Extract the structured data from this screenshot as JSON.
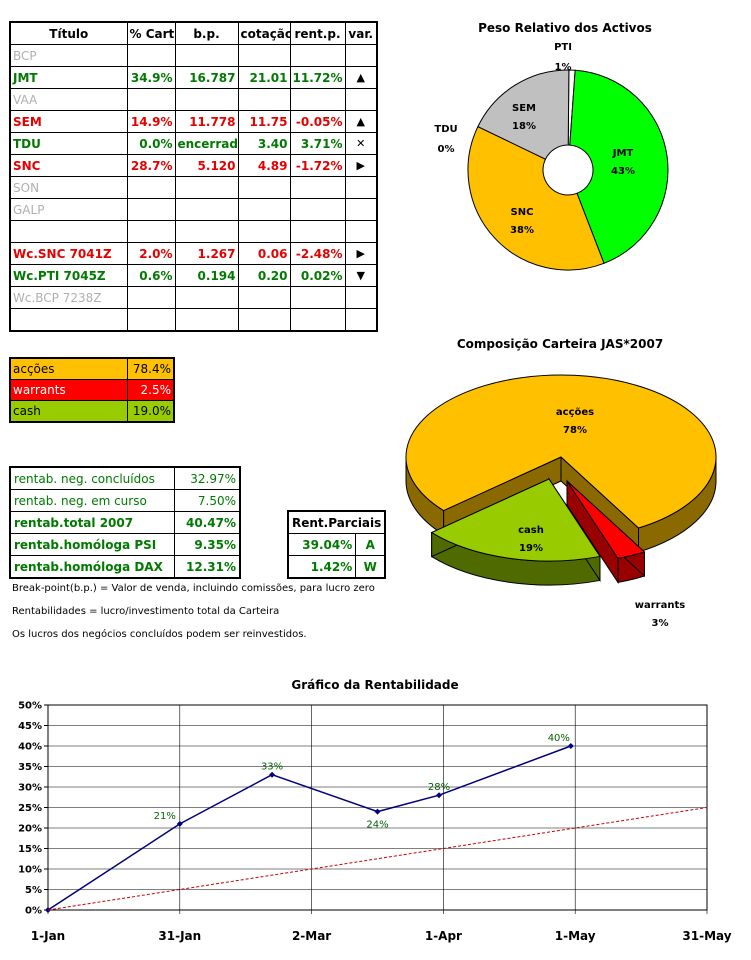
{
  "holdings": {
    "headers": [
      "Título",
      "% Cart",
      "b.p.",
      "cotação",
      "rent.p.",
      "var."
    ],
    "rows": [
      {
        "name": "BCP",
        "cart": "",
        "bp": "",
        "cot": "",
        "rent": "",
        "var": "",
        "color": "grey"
      },
      {
        "name": "JMT",
        "cart": "34.9%",
        "bp": "16.787",
        "cot": "21.01",
        "rent": "11.72%",
        "var": "▲",
        "color": "green"
      },
      {
        "name": "VAA",
        "cart": "",
        "bp": "",
        "cot": "",
        "rent": "",
        "var": "",
        "color": "grey"
      },
      {
        "name": "SEM",
        "cart": "14.9%",
        "bp": "11.778",
        "cot": "11.75",
        "rent": "-0.05%",
        "var": "▲",
        "color": "red"
      },
      {
        "name": "TDU",
        "cart": "0.0%",
        "bp": "encerrado",
        "cot": "3.40",
        "rent": "3.71%",
        "var": "✕",
        "color": "green"
      },
      {
        "name": "SNC",
        "cart": "28.7%",
        "bp": "5.120",
        "cot": "4.89",
        "rent": "-1.72%",
        "var": "▶",
        "color": "red"
      },
      {
        "name": "SON",
        "cart": "",
        "bp": "",
        "cot": "",
        "rent": "",
        "var": "",
        "color": "grey"
      },
      {
        "name": "GALP",
        "cart": "",
        "bp": "",
        "cot": "",
        "rent": "",
        "var": "",
        "color": "grey"
      },
      {
        "name": "",
        "cart": "",
        "bp": "",
        "cot": "",
        "rent": "",
        "var": "",
        "color": "dark"
      },
      {
        "name": "Wc.SNC 7041Z",
        "cart": "2.0%",
        "bp": "1.267",
        "cot": "0.06",
        "rent": "-2.48%",
        "var": "▶",
        "color": "red"
      },
      {
        "name": "Wc.PTI 7045Z",
        "cart": "0.6%",
        "bp": "0.194",
        "cot": "0.20",
        "rent": "0.02%",
        "var": "▼",
        "color": "green"
      },
      {
        "name": "Wc.BCP 7238Z",
        "cart": "",
        "bp": "",
        "cot": "",
        "rent": "",
        "var": "",
        "color": "grey"
      },
      {
        "name": "",
        "cart": "",
        "bp": "",
        "cot": "",
        "rent": "",
        "var": "",
        "color": "dark"
      }
    ]
  },
  "allocation": [
    {
      "label": "acções",
      "value": "78.4%",
      "color": "#ffc000",
      "text": "#000000"
    },
    {
      "label": "warrants",
      "value": "2.5%",
      "color": "#ff0000",
      "text": "#ffffff"
    },
    {
      "label": "cash",
      "value": "19.0%",
      "color": "#99cc00",
      "text": "#000000"
    }
  ],
  "rentab": [
    {
      "label": "rentab. neg. concluídos",
      "value": "32.97%",
      "bold": false
    },
    {
      "label": "rentab. neg. em curso",
      "value": "7.50%",
      "bold": false
    },
    {
      "label": "rentab.total 2007",
      "value": "40.47%",
      "bold": true
    },
    {
      "label": "rentab.homóloga PSI",
      "value": "9.35%",
      "bold": true
    },
    {
      "label": "rentab.homóloga DAX",
      "value": "12.31%",
      "bold": true
    }
  ],
  "parciais": {
    "header": "Rent.Parciais",
    "rows": [
      {
        "value": "39.04%",
        "letter": "A"
      },
      {
        "value": "1.42%",
        "letter": "W"
      }
    ]
  },
  "notes": [
    "Break-point(b.p.) = Valor de venda, incluindo comissões, para lucro zero",
    "Rentabilidades = lucro/investimento total da Carteira",
    "Os lucros dos negócios concluídos podem ser reinvestidos."
  ],
  "chart_data": [
    {
      "type": "pie",
      "title": "Peso Relativo dos Activos",
      "style": "doughnut",
      "slices": [
        {
          "label": "JMT",
          "value": 43,
          "display": "43%",
          "color": "#00ff00"
        },
        {
          "label": "SNC",
          "value": 38,
          "display": "38%",
          "color": "#ffc000"
        },
        {
          "label": "TDU",
          "value": 0,
          "display": "0%",
          "color": "#000000"
        },
        {
          "label": "SEM",
          "value": 18,
          "display": "18%",
          "color": "#c0c0c0"
        },
        {
          "label": "PTI",
          "value": 1,
          "display": "1%",
          "color": "#ffffff"
        }
      ]
    },
    {
      "type": "pie",
      "title": "Composição Carteira JAS*2007",
      "style": "3d-exploded",
      "slices": [
        {
          "label": "acções",
          "value": 78,
          "display": "78%",
          "color": "#ffc000"
        },
        {
          "label": "warrants",
          "value": 3,
          "display": "3%",
          "color": "#ff0000"
        },
        {
          "label": "cash",
          "value": 19,
          "display": "19%",
          "color": "#99cc00"
        }
      ]
    },
    {
      "type": "line",
      "title": "Gráfico da Rentabilidade",
      "x_ticks": [
        "1-Jan",
        "31-Jan",
        "2-Mar",
        "1-Apr",
        "1-May",
        "31-May"
      ],
      "y_ticks": [
        "0%",
        "5%",
        "10%",
        "15%",
        "20%",
        "25%",
        "30%",
        "35%",
        "40%",
        "45%",
        "50%"
      ],
      "xlim": [
        "1-Jan",
        "31-May"
      ],
      "ylim": [
        0,
        50
      ],
      "grid": true,
      "series": [
        {
          "color": "#000080",
          "points": [
            {
              "x": "1-Jan",
              "y": 0,
              "label": ""
            },
            {
              "x": "31-Jan",
              "y": 21,
              "label": "21%"
            },
            {
              "x": "21-Feb",
              "y": 33,
              "label": "33%"
            },
            {
              "x": "17-Mar",
              "y": 24,
              "label": "24%"
            },
            {
              "x": "31-Mar",
              "y": 28,
              "label": "28%"
            },
            {
              "x": "30-Apr",
              "y": 40,
              "label": "40%"
            }
          ]
        },
        {
          "color": "#cc0000",
          "dashed": true,
          "points": [
            {
              "x": "1-Jan",
              "y": 0
            },
            {
              "x": "31-May",
              "y": 25
            }
          ]
        }
      ]
    }
  ]
}
